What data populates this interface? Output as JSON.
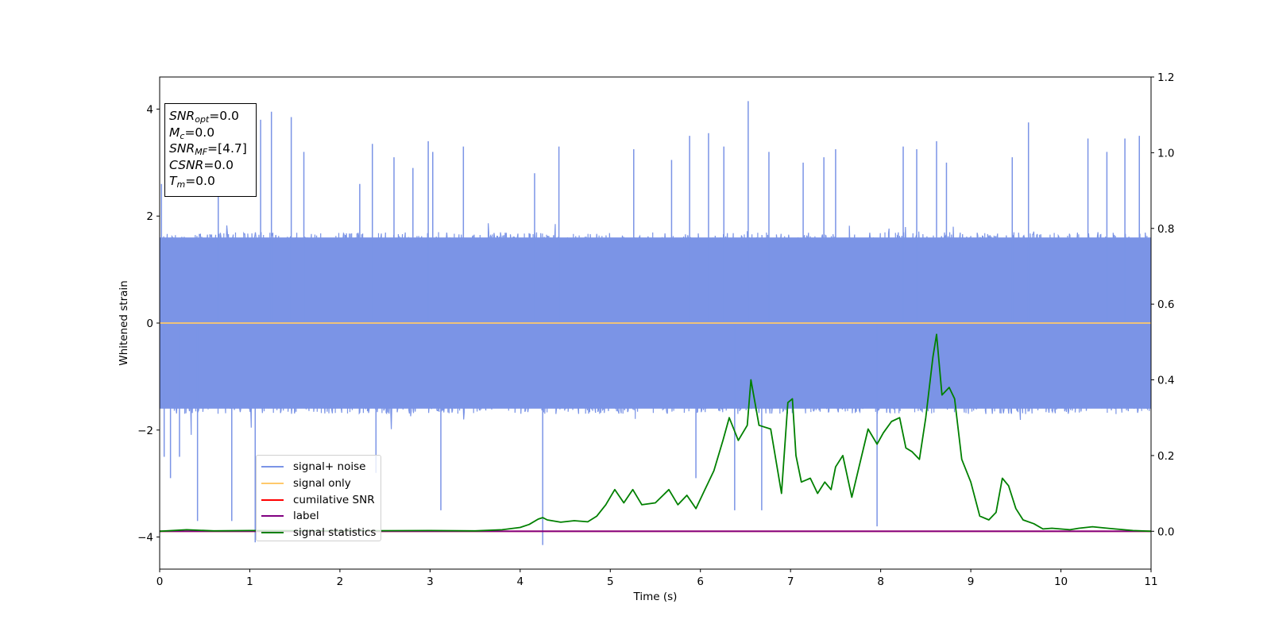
{
  "chart_data": {
    "type": "line",
    "xlabel": "Time (s)",
    "ylabel": "Whitened strain",
    "xlim": [
      0,
      11
    ],
    "ylim_left": [
      -4.6,
      4.6
    ],
    "ylim_right": [
      -0.1,
      1.2
    ],
    "x_ticks": [
      0,
      1,
      2,
      3,
      4,
      5,
      6,
      7,
      8,
      9,
      10,
      11
    ],
    "y_ticks_left": [
      -4,
      -2,
      0,
      2,
      4
    ],
    "y_tick_labels_left": [
      "−4",
      "−2",
      "0",
      "2",
      "4"
    ],
    "y_ticks_right": [
      0.0,
      0.2,
      0.4,
      0.6,
      0.8,
      1.0,
      1.2
    ],
    "y_tick_labels_right": [
      "0.0",
      "0.2",
      "0.4",
      "0.6",
      "0.8",
      "1.0",
      "1.2"
    ],
    "legend_position": "lower-left",
    "info_box": {
      "snr_opt": {
        "main": "SNR",
        "sub": "opt",
        "value": "=0.0"
      },
      "mc": {
        "main": "M",
        "sub": "c",
        "value": "=0.0"
      },
      "snr_mf": {
        "main": "SNR",
        "sub": "MF",
        "value": "=[4.7]"
      },
      "csnr": {
        "main": "CSNR",
        "value": "=0.0"
      },
      "tm": {
        "main": "T",
        "sub": "m",
        "value": "=0.0"
      }
    },
    "series": [
      {
        "name": "signal+ noise",
        "color": "#7b94e6",
        "axis": "left",
        "style": "noise",
        "band": [
          -1.6,
          1.6
        ],
        "spikes": [
          [
            0.02,
            2.6
          ],
          [
            0.05,
            -2.5
          ],
          [
            0.12,
            -2.9
          ],
          [
            0.22,
            -2.5
          ],
          [
            0.42,
            -3.7
          ],
          [
            0.65,
            2.8
          ],
          [
            0.8,
            -3.7
          ],
          [
            1.06,
            -4.1
          ],
          [
            1.12,
            3.8
          ],
          [
            1.24,
            3.95
          ],
          [
            1.46,
            3.85
          ],
          [
            1.6,
            3.2
          ],
          [
            2.22,
            2.6
          ],
          [
            2.36,
            3.35
          ],
          [
            2.4,
            -2.8
          ],
          [
            2.6,
            3.1
          ],
          [
            2.81,
            2.9
          ],
          [
            2.98,
            3.4
          ],
          [
            3.03,
            3.2
          ],
          [
            3.12,
            -3.5
          ],
          [
            3.37,
            3.3
          ],
          [
            4.16,
            2.8
          ],
          [
            4.25,
            -4.15
          ],
          [
            4.43,
            3.3
          ],
          [
            5.26,
            3.25
          ],
          [
            5.68,
            3.05
          ],
          [
            5.88,
            3.5
          ],
          [
            5.95,
            -2.9
          ],
          [
            6.09,
            3.55
          ],
          [
            6.26,
            3.3
          ],
          [
            6.38,
            -3.5
          ],
          [
            6.53,
            4.15
          ],
          [
            6.68,
            -3.5
          ],
          [
            6.76,
            3.2
          ],
          [
            7.14,
            3.0
          ],
          [
            7.37,
            3.1
          ],
          [
            7.5,
            3.25
          ],
          [
            7.96,
            -3.8
          ],
          [
            8.25,
            3.3
          ],
          [
            8.4,
            3.25
          ],
          [
            8.62,
            3.4
          ],
          [
            8.73,
            3.0
          ],
          [
            9.46,
            3.1
          ],
          [
            9.64,
            3.75
          ],
          [
            10.3,
            3.45
          ],
          [
            10.51,
            3.2
          ],
          [
            10.71,
            3.45
          ],
          [
            10.87,
            3.5
          ]
        ]
      },
      {
        "name": "signal only",
        "color": "#ffc96b",
        "axis": "left",
        "x": [
          0,
          11
        ],
        "y": [
          0,
          0
        ]
      },
      {
        "name": "cumilative SNR",
        "color": "#ff0000",
        "axis": "right",
        "x": [
          0,
          11
        ],
        "y": [
          0,
          0
        ]
      },
      {
        "name": "label",
        "color": "#800080",
        "axis": "right",
        "x": [
          0,
          11
        ],
        "y": [
          0,
          0
        ]
      },
      {
        "name": "signal statistics",
        "color": "#008000",
        "axis": "right",
        "x": [
          0,
          0.3,
          0.6,
          1.0,
          2.0,
          3.0,
          3.5,
          3.8,
          4.0,
          4.1,
          4.2,
          4.25,
          4.3,
          4.45,
          4.6,
          4.75,
          4.85,
          4.95,
          5.05,
          5.15,
          5.25,
          5.35,
          5.5,
          5.65,
          5.75,
          5.85,
          5.95,
          6.05,
          6.15,
          6.25,
          6.32,
          6.42,
          6.52,
          6.56,
          6.65,
          6.78,
          6.9,
          6.97,
          7.02,
          7.06,
          7.12,
          7.22,
          7.3,
          7.38,
          7.45,
          7.5,
          7.58,
          7.68,
          7.76,
          7.86,
          7.96,
          8.03,
          8.12,
          8.21,
          8.28,
          8.35,
          8.43,
          8.5,
          8.58,
          8.62,
          8.68,
          8.76,
          8.82,
          8.9,
          9.0,
          9.1,
          9.2,
          9.28,
          9.35,
          9.42,
          9.5,
          9.58,
          9.7,
          9.8,
          9.9,
          10.1,
          10.2,
          10.35,
          10.6,
          10.8,
          11.0
        ],
        "y": [
          0.0,
          0.004,
          0.001,
          0.002,
          0.001,
          0.002,
          0.001,
          0.004,
          0.01,
          0.018,
          0.032,
          0.036,
          0.03,
          0.024,
          0.028,
          0.025,
          0.04,
          0.07,
          0.11,
          0.075,
          0.11,
          0.07,
          0.075,
          0.11,
          0.07,
          0.095,
          0.06,
          0.11,
          0.16,
          0.24,
          0.3,
          0.24,
          0.28,
          0.4,
          0.28,
          0.27,
          0.1,
          0.34,
          0.35,
          0.2,
          0.13,
          0.14,
          0.1,
          0.13,
          0.11,
          0.17,
          0.2,
          0.09,
          0.17,
          0.27,
          0.23,
          0.26,
          0.29,
          0.3,
          0.22,
          0.21,
          0.19,
          0.3,
          0.46,
          0.52,
          0.36,
          0.38,
          0.35,
          0.19,
          0.13,
          0.04,
          0.03,
          0.05,
          0.14,
          0.12,
          0.06,
          0.03,
          0.02,
          0.006,
          0.008,
          0.004,
          0.008,
          0.012,
          0.006,
          0.002,
          0.0
        ]
      }
    ]
  }
}
